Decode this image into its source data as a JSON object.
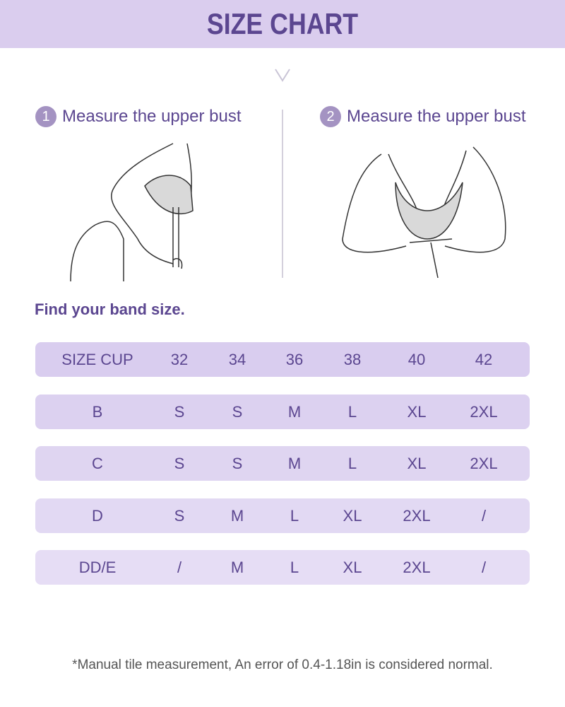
{
  "title": "SIZE CHART",
  "steps": [
    {
      "num": "1",
      "label": "Measure the upper bust"
    },
    {
      "num": "2",
      "label": "Measure the upper bust"
    }
  ],
  "find_label": "Find your band size.",
  "table": {
    "header": [
      "SIZE CUP",
      "32",
      "34",
      "36",
      "38",
      "40",
      "42"
    ],
    "rows": [
      [
        "B",
        "S",
        "S",
        "M",
        "L",
        "XL",
        "2XL"
      ],
      [
        "C",
        "S",
        "S",
        "M",
        "L",
        "XL",
        "2XL"
      ],
      [
        "D",
        "S",
        "M",
        "L",
        "XL",
        "2XL",
        "/"
      ],
      [
        "DD/E",
        "/",
        "M",
        "L",
        "XL",
        "2XL",
        "/"
      ]
    ]
  },
  "note": "*Manual tile measurement, An error of 0.4-1.18in is considered normal.",
  "colors": {
    "accent": "#5b4690",
    "header_bg": "#dacdee",
    "row_bg": "#e3d9f3"
  }
}
